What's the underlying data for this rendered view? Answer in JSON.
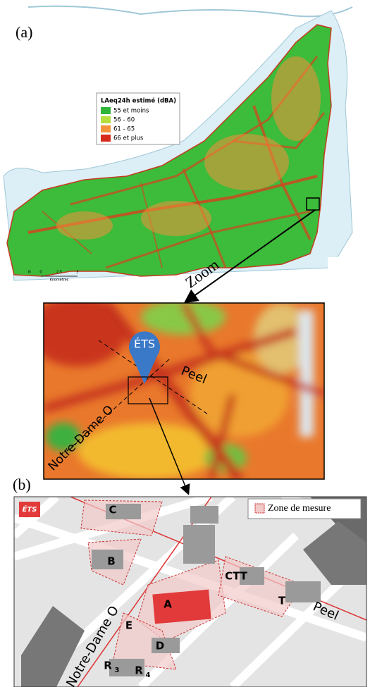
{
  "panel_a": {
    "label": "(a)",
    "legend": {
      "title": "LAeq24h estimé (dBA)",
      "items": [
        {
          "label": "55 et moins",
          "color": "#2fb53a"
        },
        {
          "label": "56 - 60",
          "color": "#b5df3c"
        },
        {
          "label": "61 - 65",
          "color": "#f2923a"
        },
        {
          "label": "66 et plus",
          "color": "#d62a1c"
        }
      ]
    },
    "scale": {
      "north": "N",
      "ticks": [
        "0",
        "2,5",
        "5"
      ],
      "unit": "Kilomètres"
    }
  },
  "zoom": {
    "arrow_label": "Zoom",
    "marker": "ÉTS",
    "streets": [
      "Peel",
      "Notre-Dame O"
    ]
  },
  "panel_b": {
    "label": "(b)",
    "logo": "ÉTS",
    "legend": "Zone de mesure",
    "buildings": [
      "C",
      "B",
      "A",
      "E",
      "D",
      "CTT",
      "T"
    ],
    "residences": [
      {
        "letter": "R",
        "index": "3"
      },
      {
        "letter": "R",
        "index": "4"
      }
    ],
    "streets": [
      "Peel",
      "Notre-Dame O"
    ]
  }
}
